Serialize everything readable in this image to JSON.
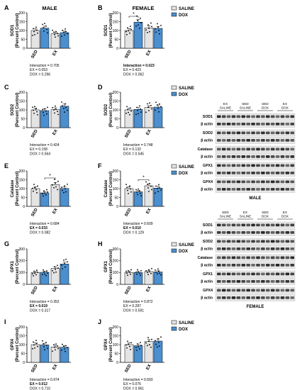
{
  "colors": {
    "saline": "#e4e4e4",
    "dox": "#4a8fd0",
    "axis": "#000000",
    "blot_bg": "#e8e8e8"
  },
  "legend": {
    "saline": "SALINE",
    "dox": "DOX"
  },
  "column_titles": {
    "male": "MALE",
    "female": "FEMALE"
  },
  "chart_data": [
    {
      "panel": "A",
      "type": "bar",
      "ylabel": "SOD1 (Percent Control)",
      "categories": [
        "SED",
        "EX"
      ],
      "ylim": [
        0,
        200
      ],
      "yticks": [
        0,
        50,
        100,
        150,
        200
      ],
      "series": [
        {
          "name": "SALINE",
          "values": [
            100,
            82
          ]
        },
        {
          "name": "DOX",
          "values": [
            113,
            88
          ]
        }
      ],
      "sig": [],
      "stats": [
        "Interaction = 0.705",
        "EX = 0.053",
        "DOX = 0.296"
      ],
      "bold": []
    },
    {
      "panel": "B",
      "type": "bar",
      "ylabel": "SOD1 (Percent Control)",
      "categories": [
        "SED",
        "EX"
      ],
      "ylim": [
        0,
        200
      ],
      "yticks": [
        0,
        50,
        100,
        150,
        200
      ],
      "series": [
        {
          "name": "SALINE",
          "values": [
            100,
            115
          ]
        },
        {
          "name": "DOX",
          "values": [
            147,
            112
          ]
        }
      ],
      "sig": [
        {
          "from": 0,
          "to": 1,
          "level": 180
        }
      ],
      "stats": [
        "Interaction = 0.023",
        "EX = 0.423",
        "DOX = 0.062"
      ],
      "bold": [
        0
      ]
    },
    {
      "panel": "C",
      "type": "bar",
      "ylabel": "SOD2 (Percent Control)",
      "categories": [
        "SED",
        "EX"
      ],
      "ylim": [
        0,
        200
      ],
      "yticks": [
        0,
        50,
        100,
        150,
        200
      ],
      "series": [
        {
          "name": "SALINE",
          "values": [
            100,
            102
          ]
        },
        {
          "name": "DOX",
          "values": [
            96,
            121
          ]
        }
      ],
      "sig": [],
      "stats": [
        "Interaction = 0.424",
        "EX = 0.158",
        "DOX = 0.564"
      ],
      "bold": []
    },
    {
      "panel": "D",
      "type": "bar",
      "ylabel": "SOD2 (Percent Control)",
      "categories": [
        "SED",
        "EX"
      ],
      "ylim": [
        0,
        200
      ],
      "yticks": [
        0,
        50,
        100,
        150,
        200
      ],
      "series": [
        {
          "name": "SALINE",
          "values": [
            100,
            113
          ]
        },
        {
          "name": "DOX",
          "values": [
            103,
            116
          ]
        }
      ],
      "sig": [],
      "stats": [
        "Interaction = 0.748",
        "EX = 0.132",
        "DOX = 0.545"
      ],
      "bold": []
    },
    {
      "panel": "E",
      "type": "bar",
      "ylabel": "Catalase (Percent Control)",
      "categories": [
        "SED",
        "EX"
      ],
      "ylim": [
        0,
        200
      ],
      "yticks": [
        0,
        50,
        100,
        150,
        200
      ],
      "series": [
        {
          "name": "SALINE",
          "values": [
            100,
            123
          ]
        },
        {
          "name": "DOX",
          "values": [
            76,
            101
          ]
        }
      ],
      "sig": [
        {
          "from": 1,
          "to": 2,
          "level": 160
        }
      ],
      "stats": [
        "Interaction = 0.684",
        "EX = 0.033",
        "DOX = 0.082"
      ],
      "bold": [
        1
      ]
    },
    {
      "panel": "F",
      "type": "bar",
      "ylabel": "Catalase (Percent Control)",
      "categories": [
        "SED",
        "EX"
      ],
      "ylim": [
        0,
        200
      ],
      "yticks": [
        0,
        50,
        100,
        150,
        200
      ],
      "series": [
        {
          "name": "SALINE",
          "values": [
            100,
            116
          ]
        },
        {
          "name": "DOX",
          "values": [
            82,
            103
          ]
        }
      ],
      "sig": [
        {
          "from": 1,
          "to": 2,
          "level": 150
        }
      ],
      "stats": [
        "Interaction = 0.609",
        "EX = 0.010",
        "DOX = 0.129"
      ],
      "bold": [
        1
      ]
    },
    {
      "panel": "G",
      "type": "bar",
      "ylabel": "GPX1 (Percent Control)",
      "categories": [
        "SED",
        "EX"
      ],
      "ylim": [
        0,
        300
      ],
      "yticks": [
        0,
        100,
        200,
        300
      ],
      "series": [
        {
          "name": "SALINE",
          "values": [
            100,
            135
          ]
        },
        {
          "name": "DOX",
          "values": [
            102,
            172
          ]
        }
      ],
      "sig": [],
      "stats": [
        "Interaction = 0.352",
        "EX = 0.019",
        "DOX = 0.317"
      ],
      "bold": [
        1
      ]
    },
    {
      "panel": "H",
      "type": "bar",
      "ylabel": "GPX1 (Percent Control)",
      "categories": [
        "SED",
        "EX"
      ],
      "ylim": [
        0,
        300
      ],
      "yticks": [
        0,
        100,
        200,
        300
      ],
      "series": [
        {
          "name": "SALINE",
          "values": [
            100,
            108
          ]
        },
        {
          "name": "DOX",
          "values": [
            100,
            105
          ]
        }
      ],
      "sig": [],
      "stats": [
        "Interaction = 0.872",
        "EX = 0.287",
        "DOX = 0.591"
      ],
      "bold": []
    },
    {
      "panel": "I",
      "type": "bar",
      "ylabel": "GPX4 (Percent Control)",
      "categories": [
        "SED",
        "EX"
      ],
      "ylim": [
        0,
        200
      ],
      "yticks": [
        0,
        50,
        100,
        150,
        200
      ],
      "series": [
        {
          "name": "SALINE",
          "values": [
            100,
            87
          ]
        },
        {
          "name": "DOX",
          "values": [
            98,
            85
          ]
        }
      ],
      "sig": [],
      "stats": [
        "Interaction = 0.974",
        "EX = 0.012",
        "DOX = 0.710"
      ],
      "bold": [
        1
      ]
    },
    {
      "panel": "J",
      "type": "bar",
      "ylabel": "GPX4 (Percent Control)",
      "categories": [
        "SED",
        "EX"
      ],
      "ylim": [
        0,
        200
      ],
      "yticks": [
        0,
        50,
        100,
        150,
        200
      ],
      "series": [
        {
          "name": "SALINE",
          "values": [
            100,
            117
          ]
        },
        {
          "name": "DOX",
          "values": [
            94,
            120
          ]
        }
      ],
      "sig": [],
      "stats": [
        "Interaction = 0.693",
        "EX = 0.076",
        "DOX = 0.961"
      ],
      "bold": []
    }
  ],
  "blots": [
    {
      "title": "MALE",
      "groups": [
        [
          "EX",
          "SALINE"
        ],
        [
          "SED",
          "SALINE"
        ],
        [
          "SED",
          "DOX"
        ],
        [
          "EX",
          "DOX"
        ]
      ],
      "rows": [
        "SOD1",
        "β actin",
        "SOD2",
        "β actin",
        "Catalase",
        "β actin",
        "GPX1",
        "β actin",
        "GPX4",
        "β actin"
      ]
    },
    {
      "title": "FEMALE",
      "groups": [
        [
          "SED",
          "SALINE"
        ],
        [
          "EX",
          "SALINE"
        ],
        [
          "SED",
          "DOX"
        ],
        [
          "EX",
          "DOX"
        ]
      ],
      "rows": [
        "SOD1",
        "β actin",
        "SOD2",
        "β actin",
        "Catalase",
        "β actin",
        "GPX1",
        "β actin",
        "GPX4",
        "β actin"
      ]
    }
  ]
}
